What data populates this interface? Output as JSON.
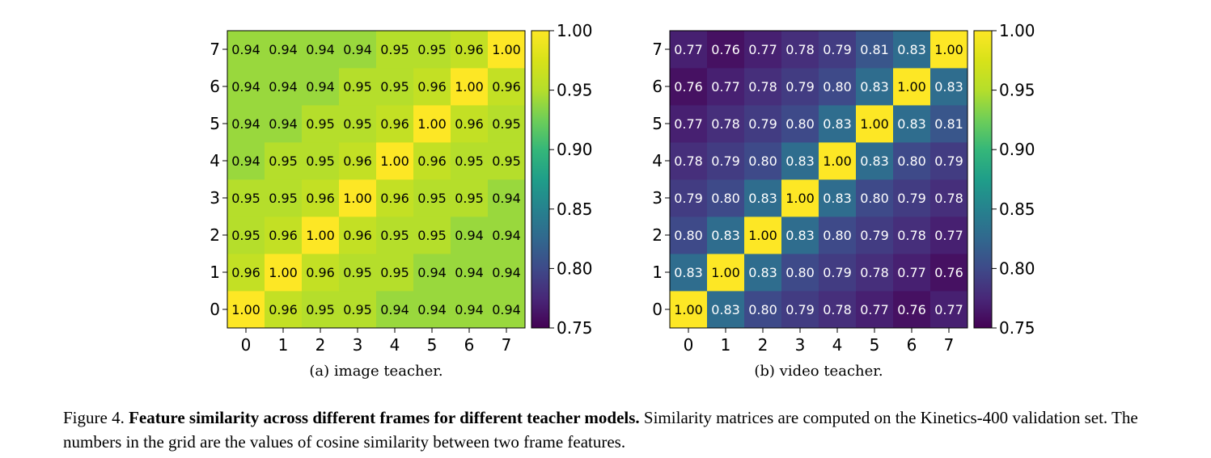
{
  "chart_data": [
    {
      "type": "heatmap",
      "caption": "(a) image teacher.",
      "x": [
        "0",
        "1",
        "2",
        "3",
        "4",
        "5",
        "6",
        "7"
      ],
      "y": [
        "0",
        "1",
        "2",
        "3",
        "4",
        "5",
        "6",
        "7"
      ],
      "values": [
        [
          1.0,
          0.96,
          0.95,
          0.95,
          0.94,
          0.94,
          0.94,
          0.94
        ],
        [
          0.96,
          1.0,
          0.96,
          0.95,
          0.95,
          0.94,
          0.94,
          0.94
        ],
        [
          0.95,
          0.96,
          1.0,
          0.96,
          0.95,
          0.95,
          0.94,
          0.94
        ],
        [
          0.95,
          0.95,
          0.96,
          1.0,
          0.96,
          0.95,
          0.95,
          0.94
        ],
        [
          0.94,
          0.95,
          0.95,
          0.96,
          1.0,
          0.96,
          0.95,
          0.95
        ],
        [
          0.94,
          0.94,
          0.95,
          0.95,
          0.96,
          1.0,
          0.96,
          0.95
        ],
        [
          0.94,
          0.94,
          0.94,
          0.95,
          0.95,
          0.96,
          1.0,
          0.96
        ],
        [
          0.94,
          0.94,
          0.94,
          0.94,
          0.95,
          0.95,
          0.96,
          1.0
        ]
      ],
      "colormap": "viridis",
      "vmin": 0.75,
      "vmax": 1.0,
      "colorbar_ticks": [
        "0.75",
        "0.80",
        "0.85",
        "0.90",
        "0.95",
        "1.00"
      ]
    },
    {
      "type": "heatmap",
      "caption": "(b) video teacher.",
      "x": [
        "0",
        "1",
        "2",
        "3",
        "4",
        "5",
        "6",
        "7"
      ],
      "y": [
        "0",
        "1",
        "2",
        "3",
        "4",
        "5",
        "6",
        "7"
      ],
      "values": [
        [
          1.0,
          0.83,
          0.8,
          0.79,
          0.78,
          0.77,
          0.76,
          0.77
        ],
        [
          0.83,
          1.0,
          0.83,
          0.8,
          0.79,
          0.78,
          0.77,
          0.76
        ],
        [
          0.8,
          0.83,
          1.0,
          0.83,
          0.8,
          0.79,
          0.78,
          0.77
        ],
        [
          0.79,
          0.8,
          0.83,
          1.0,
          0.83,
          0.8,
          0.79,
          0.78
        ],
        [
          0.78,
          0.79,
          0.8,
          0.83,
          1.0,
          0.83,
          0.8,
          0.79
        ],
        [
          0.77,
          0.78,
          0.79,
          0.8,
          0.83,
          1.0,
          0.83,
          0.81
        ],
        [
          0.76,
          0.77,
          0.78,
          0.79,
          0.8,
          0.83,
          1.0,
          0.83
        ],
        [
          0.77,
          0.76,
          0.77,
          0.78,
          0.79,
          0.81,
          0.83,
          1.0
        ]
      ],
      "colormap": "viridis",
      "vmin": 0.75,
      "vmax": 1.0,
      "colorbar_ticks": [
        "0.75",
        "0.80",
        "0.85",
        "0.90",
        "0.95",
        "1.00"
      ]
    }
  ],
  "figure_caption": {
    "label": "Figure 4.",
    "bold": "Feature similarity across different frames for different teacher models.",
    "text": "Similarity matrices are computed on the Kinetics-400 validation set. The numbers in the grid are the values of cosine similarity between two frame features."
  }
}
